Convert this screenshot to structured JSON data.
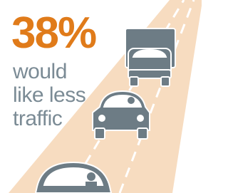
{
  "headline": {
    "figure": "38%",
    "lines": [
      "would",
      "like less",
      "traffic"
    ]
  }
}
